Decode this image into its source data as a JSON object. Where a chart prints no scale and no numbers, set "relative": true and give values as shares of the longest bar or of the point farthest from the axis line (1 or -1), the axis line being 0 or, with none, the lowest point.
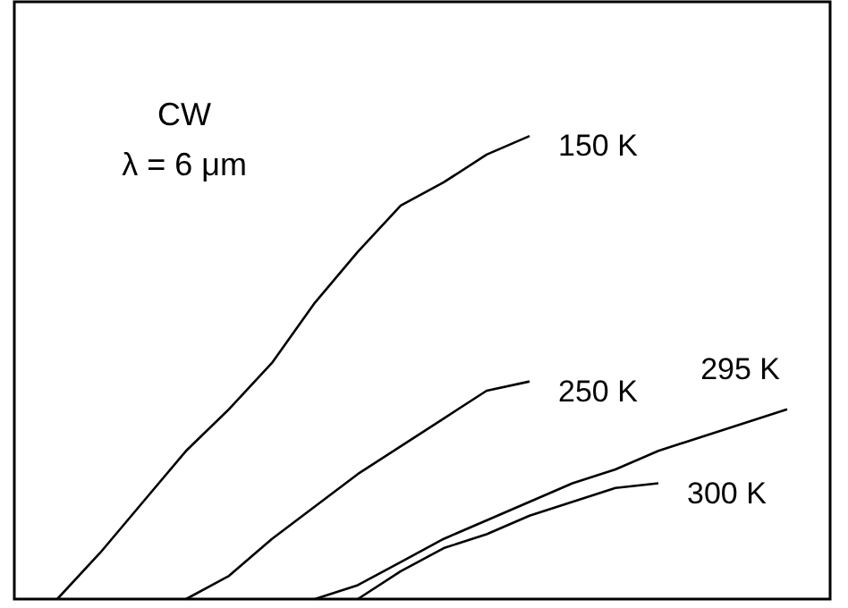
{
  "chart_data": {
    "type": "line",
    "relative": true,
    "marker": "none",
    "line_style": "solid",
    "categories": [
      null,
      null,
      null,
      null,
      null,
      null,
      null,
      null,
      null,
      null,
      null,
      null,
      null,
      null,
      null,
      null,
      null,
      null
    ],
    "series": [
      {
        "name": "150 K",
        "color": "#000000",
        "values": [
          0,
          0.1,
          0.21,
          0.32,
          0.41,
          0.51,
          0.64,
          0.75,
          0.85,
          0.9,
          0.96,
          1.0,
          null,
          null,
          null,
          null,
          null,
          null
        ]
      },
      {
        "name": "250 K",
        "color": "#000000",
        "values": [
          null,
          null,
          null,
          0,
          0.05,
          0.13,
          0.2,
          0.27,
          0.33,
          0.39,
          0.45,
          0.47,
          null,
          null,
          null,
          null,
          null,
          null
        ]
      },
      {
        "name": "295 K",
        "color": "#000000",
        "values": [
          null,
          null,
          null,
          null,
          null,
          null,
          0,
          0.03,
          0.08,
          0.13,
          0.17,
          0.21,
          0.25,
          0.28,
          0.32,
          0.35,
          0.38,
          0.41
        ]
      },
      {
        "name": "300 K",
        "color": "#000000",
        "values": [
          null,
          null,
          null,
          null,
          null,
          null,
          null,
          0,
          0.06,
          0.11,
          0.14,
          0.18,
          0.21,
          0.24,
          0.25,
          null,
          null,
          null
        ]
      }
    ],
    "annotations": [
      "CW",
      "λ = 6 μm"
    ]
  }
}
